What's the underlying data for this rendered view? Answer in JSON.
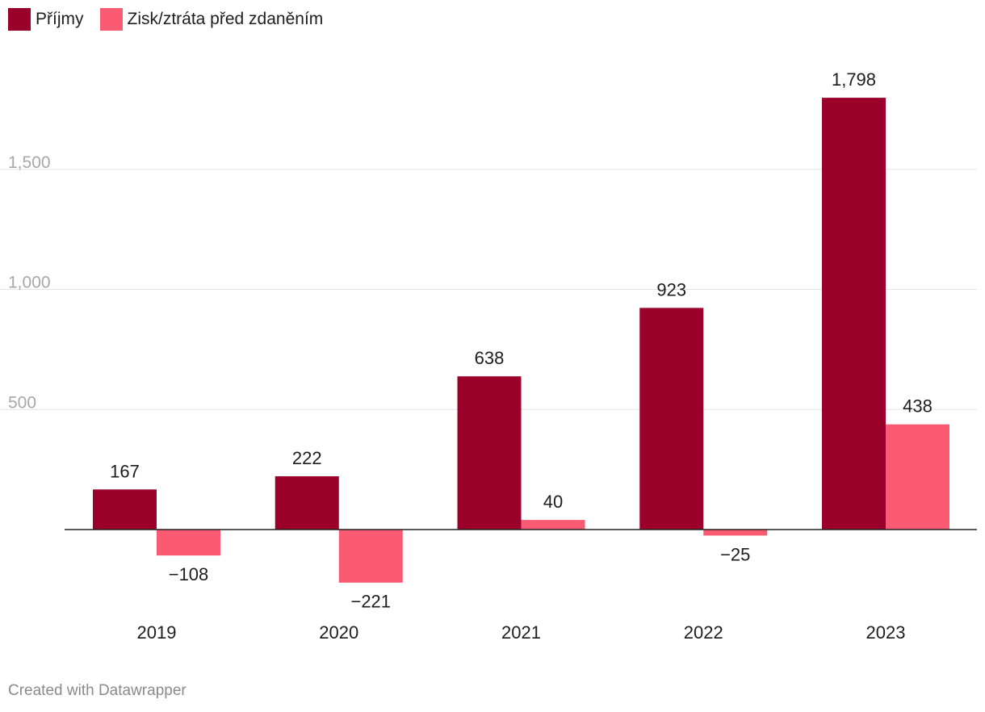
{
  "legend": {
    "items": [
      {
        "label": "Příjmy",
        "color": "#9b002a"
      },
      {
        "label": "Zisk/ztráta před zdaněním",
        "color": "#fb5b72"
      }
    ]
  },
  "chart_data": {
    "type": "bar",
    "categories": [
      "2019",
      "2020",
      "2021",
      "2022",
      "2023"
    ],
    "series": [
      {
        "name": "Příjmy",
        "values": [
          167,
          222,
          638,
          923,
          1798
        ],
        "labels": [
          "167",
          "222",
          "638",
          "923",
          "1,798"
        ],
        "color": "#9b002a"
      },
      {
        "name": "Zisk/ztráta před zdaněním",
        "values": [
          -108,
          -221,
          40,
          -25,
          438
        ],
        "labels": [
          "−108",
          "−221",
          "40",
          "−25",
          "438"
        ],
        "color": "#fb5b72"
      }
    ],
    "yticks": [
      500,
      1000,
      1500
    ],
    "ytick_labels": [
      "500",
      "1,000",
      "1,500"
    ],
    "ylim": [
      -250,
      1900
    ],
    "grid": true,
    "legend_position": "top-left"
  },
  "footer": {
    "credit": "Created with Datawrapper"
  }
}
